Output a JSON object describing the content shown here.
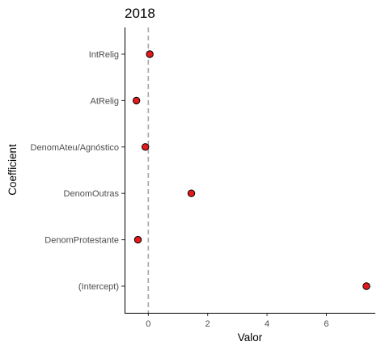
{
  "chart_data": {
    "type": "scatter",
    "title": "2018",
    "xlabel": "Valor",
    "ylabel": "Coefficient",
    "xlim": [
      -0.8,
      7.65
    ],
    "x_ticks": [
      0,
      2,
      4,
      6
    ],
    "reference_line_x": 0,
    "grid": false,
    "categories": [
      "(Intercept)",
      "DenomProtestante",
      "DenomOutras",
      "DenomAteu/Agnóstico",
      "AtRelig",
      "IntRelig"
    ],
    "values": [
      7.35,
      -0.35,
      1.45,
      -0.1,
      -0.4,
      0.05
    ],
    "point_color": "#e31a1c",
    "point_stroke": "#000000",
    "ref_line_color": "#a6a6a6"
  }
}
